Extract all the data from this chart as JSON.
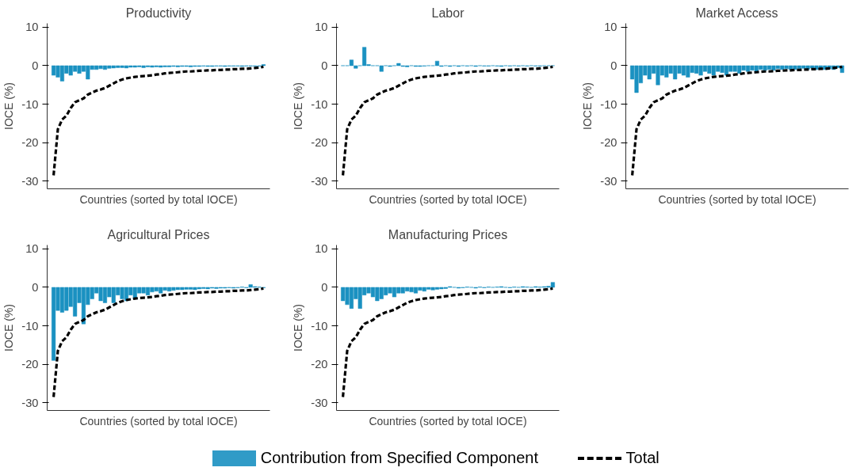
{
  "chart_data": [
    {
      "type": "bar",
      "title": "Productivity",
      "xlabel": "Countries (sorted by total IOCE)",
      "ylabel": "IOCE (%)",
      "categories": [
        null,
        null,
        null,
        null,
        null,
        null,
        null,
        null,
        null,
        null,
        null,
        null,
        null,
        null,
        null,
        null,
        null,
        null,
        null,
        null,
        null,
        null,
        null,
        null,
        null,
        null,
        null,
        null,
        null,
        null,
        null,
        null,
        null,
        null,
        null,
        null,
        null,
        null,
        null,
        null,
        null,
        null,
        null,
        null,
        null,
        null,
        null,
        null,
        null,
        null
      ],
      "ylim": [
        -32,
        11
      ],
      "yticks": [
        -30,
        -20,
        -10,
        0,
        10
      ],
      "tick_labels": "y",
      "grid": false,
      "legend": "bottom",
      "series": [
        {
          "name": "Contribution from Specified Component",
          "color": "#1a91c1",
          "values": [
            -2.5,
            -3,
            -4,
            -2,
            -2.5,
            -1.5,
            -2,
            -1.5,
            -3.5,
            -1,
            -1,
            -0.8,
            -1,
            -0.7,
            -0.6,
            -0.5,
            -0.5,
            -0.6,
            -0.4,
            -0.4,
            -0.3,
            -0.5,
            -0.3,
            -0.4,
            -0.3,
            -0.4,
            -0.3,
            -0.3,
            -0.2,
            -0.3,
            -0.2,
            -0.2,
            -0.3,
            -0.2,
            -0.2,
            -0.1,
            -0.2,
            -0.2,
            -0.1,
            -0.1,
            -0.2,
            -0.1,
            -0.1,
            -0.1,
            -0.2,
            -0.1,
            -0.1,
            -0.1,
            -0.1,
            0.3
          ]
        },
        {
          "name": "Total",
          "type": "line",
          "line_style": "dashed",
          "color": "#000000",
          "values": [
            -28.5,
            -16.5,
            -14,
            -13,
            -11,
            -9.5,
            -9,
            -8.5,
            -7.5,
            -7,
            -6.5,
            -6.2,
            -5.8,
            -5.2,
            -4.6,
            -4,
            -3.6,
            -3.3,
            -3.1,
            -2.9,
            -2.8,
            -2.7,
            -2.6,
            -2.5,
            -2.3,
            -2.2,
            -2,
            -1.9,
            -1.8,
            -1.7,
            -1.6,
            -1.5,
            -1.5,
            -1.4,
            -1.3,
            -1.3,
            -1.2,
            -1.2,
            -1.1,
            -1.1,
            -1,
            -1,
            -0.9,
            -0.9,
            -0.8,
            -0.8,
            -0.7,
            -0.6,
            -0.5,
            -0.3
          ]
        }
      ]
    },
    {
      "type": "bar",
      "title": "Labor",
      "xlabel": "Countries (sorted by total IOCE)",
      "ylabel": "IOCE (%)",
      "categories": [
        null,
        null,
        null,
        null,
        null,
        null,
        null,
        null,
        null,
        null,
        null,
        null,
        null,
        null,
        null,
        null,
        null,
        null,
        null,
        null,
        null,
        null,
        null,
        null,
        null,
        null,
        null,
        null,
        null,
        null,
        null,
        null,
        null,
        null,
        null,
        null,
        null,
        null,
        null,
        null,
        null,
        null,
        null,
        null,
        null,
        null,
        null,
        null,
        null,
        null
      ],
      "ylim": [
        -32,
        11
      ],
      "yticks": [
        -30,
        -20,
        -10,
        0,
        10
      ],
      "tick_labels": "y",
      "grid": false,
      "series": [
        {
          "color": "#1a91c1",
          "values": [
            0,
            0,
            1.5,
            -0.7,
            0,
            4.8,
            0.3,
            0,
            0,
            -1.5,
            0,
            -0.2,
            0,
            0.6,
            -0.2,
            -0.3,
            0,
            -0.2,
            -0.2,
            -0.1,
            0,
            0,
            1.2,
            -0.2,
            0,
            -0.2,
            0,
            -0.2,
            0,
            -0.1,
            0,
            -0.2,
            0,
            -0.1,
            -0.1,
            0,
            -0.1,
            -0.2,
            0,
            -0.1,
            0,
            -0.1,
            0,
            -0.1,
            0,
            -0.1,
            -0.1,
            0,
            0,
            0
          ]
        },
        {
          "type": "line",
          "line_style": "dashed",
          "color": "#000000",
          "values": [
            -28.5,
            -16.5,
            -14,
            -13,
            -11,
            -9.5,
            -9,
            -8.5,
            -7.5,
            -7,
            -6.5,
            -6.2,
            -5.8,
            -5.2,
            -4.6,
            -4,
            -3.6,
            -3.3,
            -3.1,
            -2.9,
            -2.8,
            -2.7,
            -2.6,
            -2.5,
            -2.3,
            -2.2,
            -2,
            -1.9,
            -1.8,
            -1.7,
            -1.6,
            -1.5,
            -1.5,
            -1.4,
            -1.3,
            -1.3,
            -1.2,
            -1.2,
            -1.1,
            -1.1,
            -1,
            -1,
            -0.9,
            -0.9,
            -0.8,
            -0.8,
            -0.7,
            -0.6,
            -0.5,
            -0.3
          ]
        }
      ]
    },
    {
      "type": "bar",
      "title": "Market Access",
      "xlabel": "Countries (sorted by total IOCE)",
      "ylabel": "IOCE (%)",
      "categories": [
        null,
        null,
        null,
        null,
        null,
        null,
        null,
        null,
        null,
        null,
        null,
        null,
        null,
        null,
        null,
        null,
        null,
        null,
        null,
        null,
        null,
        null,
        null,
        null,
        null,
        null,
        null,
        null,
        null,
        null,
        null,
        null,
        null,
        null,
        null,
        null,
        null,
        null,
        null,
        null,
        null,
        null,
        null,
        null,
        null,
        null,
        null,
        null,
        null,
        null
      ],
      "ylim": [
        -32,
        11
      ],
      "yticks": [
        -30,
        -20,
        -10,
        0,
        10
      ],
      "tick_labels": "y",
      "grid": false,
      "series": [
        {
          "color": "#1a91c1",
          "values": [
            -3.5,
            -7,
            -4.5,
            -2.5,
            -3.5,
            -2,
            -5,
            -2.5,
            -3,
            -2,
            -3.5,
            -2,
            -2.5,
            -3,
            -1.8,
            -2,
            -2.5,
            -1.5,
            -2,
            -2.5,
            -1.5,
            -1.8,
            -2.5,
            -1.5,
            -1.5,
            -2,
            -1.2,
            -1.5,
            -1.2,
            -1.5,
            -1,
            -1.2,
            -1,
            -1.2,
            -0.8,
            -1,
            -0.8,
            -1,
            -1,
            -0.8,
            -0.7,
            -0.9,
            -0.6,
            -1,
            -0.7,
            -1,
            -0.8,
            -1,
            -0.5,
            -1.8
          ]
        },
        {
          "type": "line",
          "line_style": "dashed",
          "color": "#000000",
          "values": [
            -28.5,
            -16.5,
            -14,
            -13,
            -11,
            -9.5,
            -9,
            -8.5,
            -7.5,
            -7,
            -6.5,
            -6.2,
            -5.8,
            -5.2,
            -4.6,
            -4,
            -3.6,
            -3.3,
            -3.1,
            -2.9,
            -2.8,
            -2.7,
            -2.6,
            -2.5,
            -2.3,
            -2.2,
            -2,
            -1.9,
            -1.8,
            -1.7,
            -1.6,
            -1.5,
            -1.5,
            -1.4,
            -1.3,
            -1.3,
            -1.2,
            -1.2,
            -1.1,
            -1.1,
            -1,
            -1,
            -0.9,
            -0.9,
            -0.8,
            -0.8,
            -0.7,
            -0.6,
            -0.5,
            -0.3
          ]
        }
      ]
    },
    {
      "type": "bar",
      "title": "Agricultural Prices",
      "xlabel": "Countries (sorted by total IOCE)",
      "ylabel": "IOCE (%)",
      "categories": [
        null,
        null,
        null,
        null,
        null,
        null,
        null,
        null,
        null,
        null,
        null,
        null,
        null,
        null,
        null,
        null,
        null,
        null,
        null,
        null,
        null,
        null,
        null,
        null,
        null,
        null,
        null,
        null,
        null,
        null,
        null,
        null,
        null,
        null,
        null,
        null,
        null,
        null,
        null,
        null,
        null,
        null,
        null,
        null,
        null,
        null,
        null,
        null,
        null,
        null
      ],
      "ylim": [
        -32,
        11
      ],
      "yticks": [
        -30,
        -20,
        -10,
        0,
        10
      ],
      "tick_labels": "y",
      "grid": false,
      "series": [
        {
          "color": "#1a91c1",
          "values": [
            -19,
            -6,
            -6.5,
            -6,
            -5,
            -7.5,
            -4,
            -9.5,
            -4.5,
            -3,
            -1.5,
            -3.5,
            -4,
            -2.5,
            -4,
            -2,
            -3,
            -3.5,
            -2,
            -3,
            -1.5,
            -1.5,
            -2,
            -1.2,
            -1,
            -1.5,
            -0.8,
            -1,
            -0.8,
            -0.6,
            -0.6,
            -0.5,
            -0.5,
            -0.6,
            -0.4,
            -0.3,
            -0.4,
            -0.2,
            -0.3,
            -0.2,
            -0.2,
            -0.1,
            -0.2,
            -0.1,
            0.1,
            -0.1,
            0.7,
            0.2,
            0.1,
            -0.1
          ]
        },
        {
          "type": "line",
          "line_style": "dashed",
          "color": "#000000",
          "values": [
            -28.5,
            -16.5,
            -14,
            -13,
            -11,
            -9.5,
            -9,
            -8.5,
            -7.5,
            -7,
            -6.5,
            -6.2,
            -5.8,
            -5.2,
            -4.6,
            -4,
            -3.6,
            -3.3,
            -3.1,
            -2.9,
            -2.8,
            -2.7,
            -2.6,
            -2.5,
            -2.3,
            -2.2,
            -2,
            -1.9,
            -1.8,
            -1.7,
            -1.6,
            -1.5,
            -1.5,
            -1.4,
            -1.3,
            -1.3,
            -1.2,
            -1.2,
            -1.1,
            -1.1,
            -1,
            -1,
            -0.9,
            -0.9,
            -0.8,
            -0.8,
            -0.7,
            -0.6,
            -0.5,
            -0.3
          ]
        }
      ]
    },
    {
      "type": "bar",
      "title": "Manufacturing Prices",
      "xlabel": "Countries (sorted by total IOCE)",
      "ylabel": "IOCE (%)",
      "categories": [
        null,
        null,
        null,
        null,
        null,
        null,
        null,
        null,
        null,
        null,
        null,
        null,
        null,
        null,
        null,
        null,
        null,
        null,
        null,
        null,
        null,
        null,
        null,
        null,
        null,
        null,
        null,
        null,
        null,
        null,
        null,
        null,
        null,
        null,
        null,
        null,
        null,
        null,
        null,
        null,
        null,
        null,
        null,
        null,
        null,
        null,
        null,
        null,
        null,
        null
      ],
      "ylim": [
        -32,
        11
      ],
      "yticks": [
        -30,
        -20,
        -10,
        0,
        10
      ],
      "tick_labels": "y",
      "grid": false,
      "series": [
        {
          "color": "#1a91c1",
          "values": [
            -3.5,
            -4.5,
            -5.5,
            -3,
            -5.5,
            -2,
            -1.5,
            -2.5,
            -3.5,
            -3,
            -2,
            -1.5,
            -2.5,
            -1.5,
            -1.5,
            -1,
            -1.2,
            -1.5,
            -0.8,
            -1,
            -0.5,
            -0.7,
            -0.5,
            -0.4,
            -0.3,
            0.2,
            0,
            -0.2,
            -0.1,
            0.1,
            0,
            -0.2,
            0.1,
            -0.1,
            0.1,
            0,
            0.1,
            0.2,
            0,
            -0.1,
            0.1,
            0,
            0.2,
            0.1,
            0,
            0.2,
            0.1,
            0.2,
            0.3,
            1.3
          ]
        },
        {
          "type": "line",
          "line_style": "dashed",
          "color": "#000000",
          "values": [
            -28.5,
            -16.5,
            -14,
            -13,
            -11,
            -9.5,
            -9,
            -8.5,
            -7.5,
            -7,
            -6.5,
            -6.2,
            -5.8,
            -5.2,
            -4.6,
            -4,
            -3.6,
            -3.3,
            -3.1,
            -2.9,
            -2.8,
            -2.7,
            -2.6,
            -2.5,
            -2.3,
            -2.2,
            -2,
            -1.9,
            -1.8,
            -1.7,
            -1.6,
            -1.5,
            -1.5,
            -1.4,
            -1.3,
            -1.3,
            -1.2,
            -1.2,
            -1.1,
            -1.1,
            -1,
            -1,
            -0.9,
            -0.9,
            -0.8,
            -0.8,
            -0.7,
            -0.6,
            -0.5,
            -0.3
          ]
        }
      ]
    }
  ]
}
